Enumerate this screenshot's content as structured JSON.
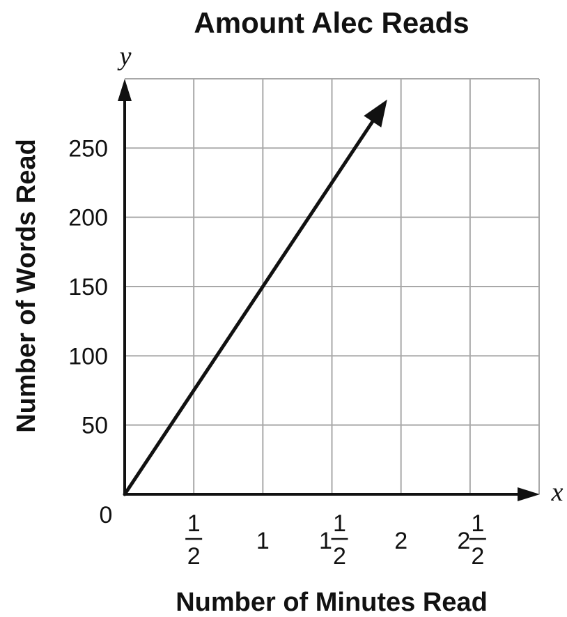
{
  "chart_data": {
    "type": "line",
    "title": "Amount Alec Reads",
    "xlabel": "Number of Minutes Read",
    "ylabel": "Number of Words Read",
    "x_axis_variable": "x",
    "y_axis_variable": "y",
    "origin_label": "0",
    "xlim": [
      0,
      3
    ],
    "ylim": [
      0,
      300
    ],
    "x_ticks": [
      {
        "value": 0.5,
        "whole": "",
        "num": "1",
        "den": "2"
      },
      {
        "value": 1,
        "whole": "1",
        "num": "",
        "den": ""
      },
      {
        "value": 1.5,
        "whole": "1",
        "num": "1",
        "den": "2"
      },
      {
        "value": 2,
        "whole": "2",
        "num": "",
        "den": ""
      },
      {
        "value": 2.5,
        "whole": "2",
        "num": "1",
        "den": "2"
      }
    ],
    "y_ticks": [
      {
        "value": 50,
        "label": "50"
      },
      {
        "value": 100,
        "label": "100"
      },
      {
        "value": 150,
        "label": "150"
      },
      {
        "value": 200,
        "label": "200"
      },
      {
        "value": 250,
        "label": "250"
      }
    ],
    "grid": true,
    "series": [
      {
        "x": [
          0,
          1.9
        ],
        "y": [
          0,
          285
        ],
        "arrow_end": true
      }
    ]
  }
}
